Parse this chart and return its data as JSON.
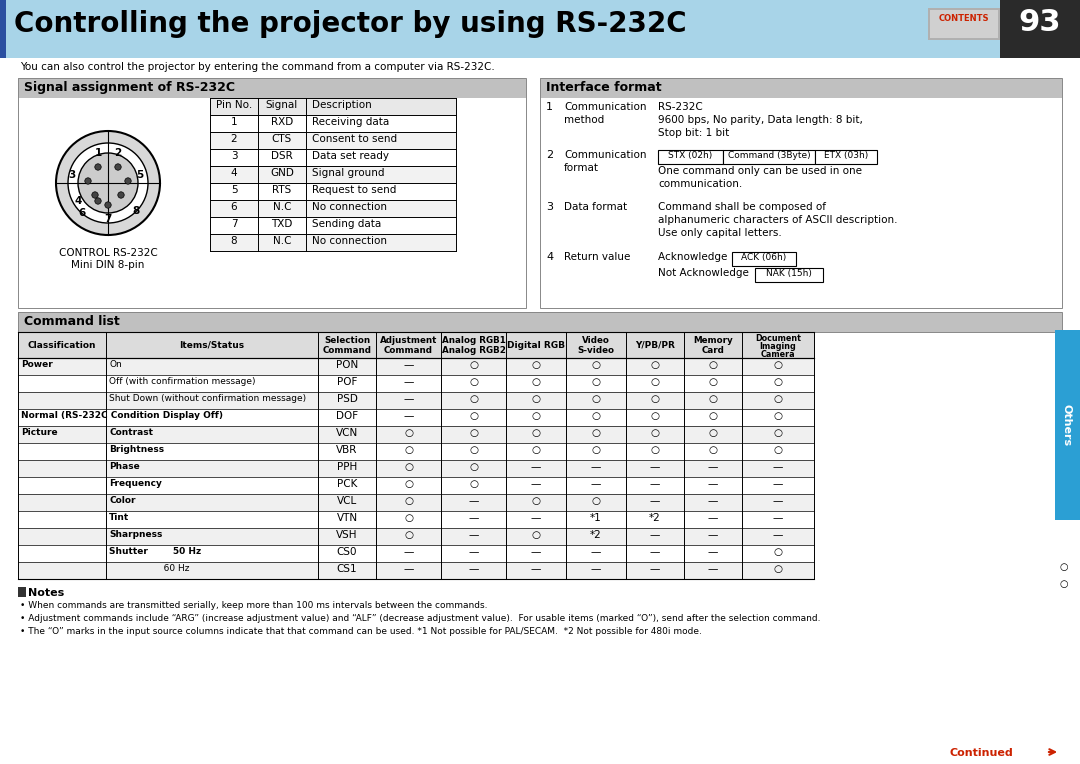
{
  "title": "Controlling the projector by using RS-232C",
  "title_bg": "#a8d4e8",
  "page_num": "93",
  "subtitle": "You can also control the projector by entering the command from a computer via RS-232C.",
  "section1_title": "Signal assignment of RS-232C",
  "section2_title": "Interface format",
  "section3_title": "Command list",
  "pin_table_headers": [
    "Pin No.",
    "Signal",
    "Description"
  ],
  "pin_table_rows": [
    [
      "1",
      "RXD",
      "Receiving data"
    ],
    [
      "2",
      "CTS",
      "Consent to send"
    ],
    [
      "3",
      "DSR",
      "Data set ready"
    ],
    [
      "4",
      "GND",
      "Signal ground"
    ],
    [
      "5",
      "RTS",
      "Request to send"
    ],
    [
      "6",
      "N.C",
      "No connection"
    ],
    [
      "7",
      "TXD",
      "Sending data"
    ],
    [
      "8",
      "N.C",
      "No connection"
    ]
  ],
  "connector_label_line1": "CONTROL RS-232C",
  "connector_label_line2": "Mini DIN 8-pin",
  "cmd_headers": [
    "Classification",
    "Items/Status",
    "Selection\nCommand",
    "Adjustment\nCommand",
    "Analog RGB1\nAnalog RGB2",
    "Digital RGB",
    "Video\nS-video",
    "Y/PB/PR",
    "Memory\nCard",
    "Document\nImaging\nCamera"
  ],
  "cmd_rows": [
    {
      "cls": "Power",
      "bold_cls": true,
      "item": "On",
      "bold_item": false,
      "sel": "PON",
      "adj": "—",
      "rgb1": "○",
      "drgb": "○",
      "vid": "○",
      "ypb": "○",
      "mem": "○",
      "doc": "○"
    },
    {
      "cls": "",
      "bold_cls": false,
      "item": "Off (with confirmation message)",
      "bold_item": false,
      "sel": "POF",
      "adj": "—",
      "rgb1": "○",
      "drgb": "○",
      "vid": "○",
      "ypb": "○",
      "mem": "○",
      "doc": "○"
    },
    {
      "cls": "",
      "bold_cls": false,
      "item": "Shut Down (without confirmation message)",
      "bold_item": false,
      "sel": "PSD",
      "adj": "—",
      "rgb1": "○",
      "drgb": "○",
      "vid": "○",
      "ypb": "○",
      "mem": "○",
      "doc": "○"
    },
    {
      "cls": "Normal (RS-232C Condition Display Off)",
      "bold_cls": true,
      "item": "",
      "bold_item": false,
      "sel": "DOF",
      "adj": "—",
      "rgb1": "○",
      "drgb": "○",
      "vid": "○",
      "ypb": "○",
      "mem": "○",
      "doc": "○"
    },
    {
      "cls": "Picture",
      "bold_cls": true,
      "item": "Contrast",
      "bold_item": true,
      "sel": "VCN",
      "adj": "○",
      "rgb1": "○",
      "drgb": "○",
      "vid": "○",
      "ypb": "○",
      "mem": "○",
      "doc": "○"
    },
    {
      "cls": "",
      "bold_cls": false,
      "item": "Brightness",
      "bold_item": true,
      "sel": "VBR",
      "adj": "○",
      "rgb1": "○",
      "drgb": "○",
      "vid": "○",
      "ypb": "○",
      "mem": "○",
      "doc": "○"
    },
    {
      "cls": "",
      "bold_cls": false,
      "item": "Phase",
      "bold_item": true,
      "sel": "PPH",
      "adj": "○",
      "rgb1": "○",
      "drgb": "—",
      "vid": "—",
      "ypb": "—",
      "mem": "—",
      "doc": "—"
    },
    {
      "cls": "",
      "bold_cls": false,
      "item": "Frequency",
      "bold_item": true,
      "sel": "PCK",
      "adj": "○",
      "rgb1": "○",
      "drgb": "—",
      "vid": "—",
      "ypb": "—",
      "mem": "—",
      "doc": "—"
    },
    {
      "cls": "",
      "bold_cls": false,
      "item": "Color",
      "bold_item": true,
      "sel": "VCL",
      "adj": "○",
      "rgb1": "—",
      "drgb": "○",
      "vid": "○",
      "ypb": "—",
      "mem": "—",
      "doc": "—"
    },
    {
      "cls": "",
      "bold_cls": false,
      "item": "Tint",
      "bold_item": true,
      "sel": "VTN",
      "adj": "○",
      "rgb1": "—",
      "drgb": "—",
      "vid": "*1",
      "ypb": "*2",
      "mem": "—",
      "doc": "—"
    },
    {
      "cls": "",
      "bold_cls": false,
      "item": "Sharpness",
      "bold_item": true,
      "sel": "VSH",
      "adj": "○",
      "rgb1": "—",
      "drgb": "○",
      "vid": "*2",
      "ypb": "—",
      "mem": "—",
      "doc": "—"
    },
    {
      "cls": "",
      "bold_cls": false,
      "item": "Shutter        50 Hz",
      "bold_item": true,
      "sel": "CS0",
      "adj": "—",
      "rgb1": "—",
      "drgb": "—",
      "vid": "—",
      "ypb": "—",
      "mem": "—",
      "doc": "○"
    },
    {
      "cls": "",
      "bold_cls": false,
      "item": "                   60 Hz",
      "bold_item": false,
      "sel": "CS1",
      "adj": "—",
      "rgb1": "—",
      "drgb": "—",
      "vid": "—",
      "ypb": "—",
      "mem": "—",
      "doc": "○"
    }
  ],
  "notes": [
    "When commands are transmitted serially, keep more than 100 ms intervals between the commands.",
    "Adjustment commands include “ARG” (increase adjustment value) and “ALF” (decrease adjustment value).  For usable items (marked “O”), send after the selection command.",
    "The “O” marks in the input source columns indicate that that command can be used. *1 Not possible for PAL/SECAM.  *2 Not possible for 480i mode."
  ],
  "bg_color": "#ffffff",
  "section_header_bg": "#c0c0c0",
  "right_tab_color": "#2b9fd4",
  "continued_color": "#cc2200"
}
